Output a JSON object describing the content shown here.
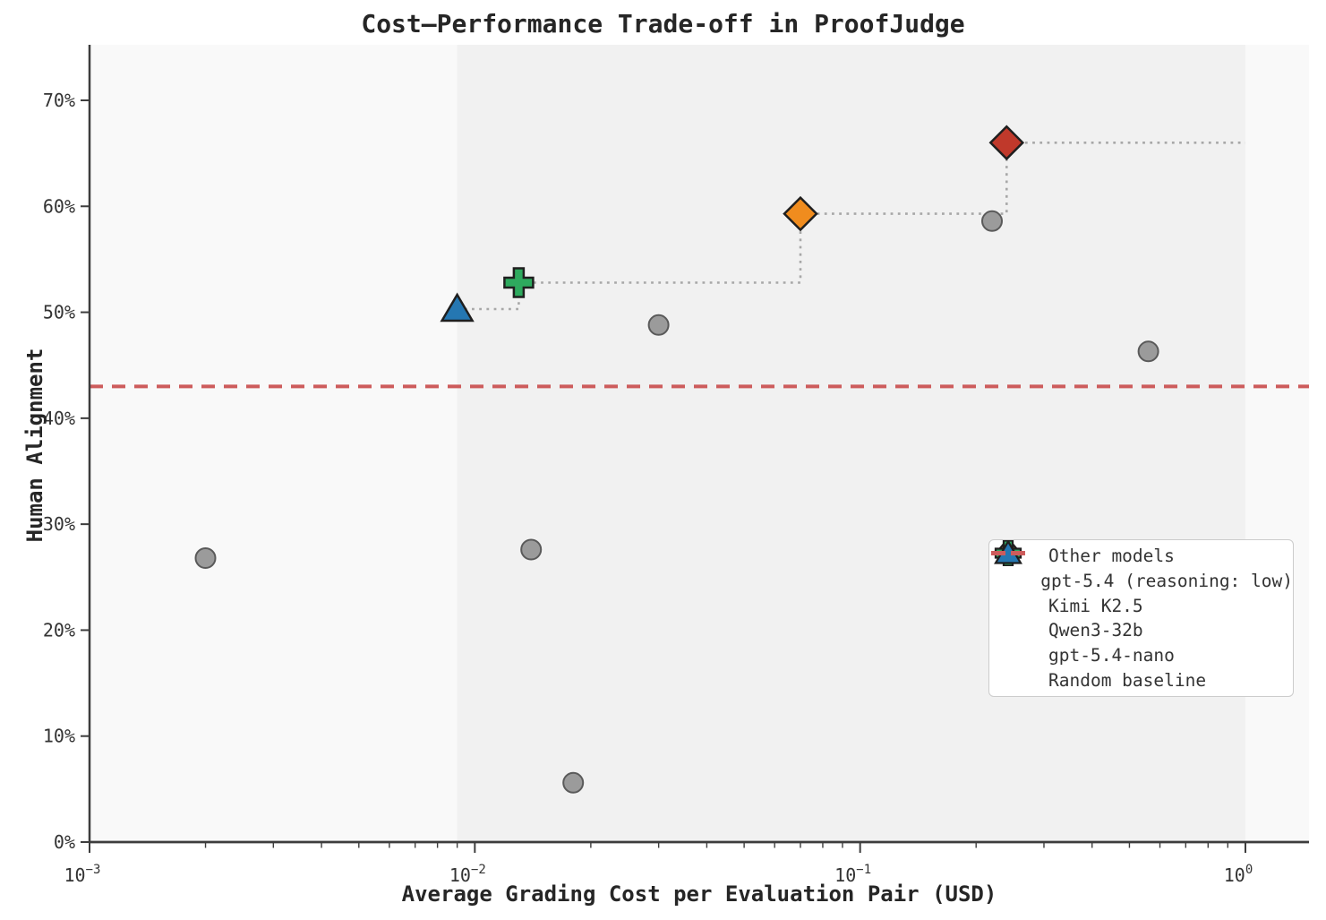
{
  "chart_data": {
    "type": "scatter",
    "title": "Cost—Performance Trade-off in ProofJudge",
    "xlabel": "Average Grading Cost per Evaluation Pair (USD)",
    "ylabel": "Human Alignment",
    "x_scale": "log",
    "xlim": [
      0.001,
      1.45
    ],
    "ylim": [
      0,
      75.2
    ],
    "grid": "off",
    "legend_position": "lower right",
    "x_ticks": [
      {
        "value": 0.001,
        "base": "10",
        "exp": "−3"
      },
      {
        "value": 0.01,
        "base": "10",
        "exp": "−2"
      },
      {
        "value": 0.1,
        "base": "10",
        "exp": "−1"
      },
      {
        "value": 1.0,
        "base": "10",
        "exp": "0"
      }
    ],
    "y_ticks": [
      {
        "value": 0,
        "label": "0%"
      },
      {
        "value": 10,
        "label": "10%"
      },
      {
        "value": 20,
        "label": "20%"
      },
      {
        "value": 30,
        "label": "30%"
      },
      {
        "value": 40,
        "label": "40%"
      },
      {
        "value": 50,
        "label": "50%"
      },
      {
        "value": 60,
        "label": "60%"
      },
      {
        "value": 70,
        "label": "70%"
      }
    ],
    "series": [
      {
        "name": "Other models",
        "marker": "circle",
        "color": "#9b9b9b",
        "edge_color": "#5a5a5a",
        "points": [
          [
            0.002,
            26.8
          ],
          [
            0.014,
            27.6
          ],
          [
            0.018,
            5.6
          ],
          [
            0.03,
            48.8
          ],
          [
            0.22,
            58.6
          ],
          [
            0.56,
            46.3
          ]
        ]
      },
      {
        "name": "gpt-5.4-nano",
        "marker": "triangle",
        "color": "#2577b2",
        "edge_color": "#1f1f1f",
        "points": [
          [
            0.009,
            50.3
          ]
        ]
      },
      {
        "name": "Qwen3-32b",
        "marker": "plus",
        "color": "#2eaa5e",
        "edge_color": "#1f1f1f",
        "points": [
          [
            0.013,
            52.8
          ]
        ]
      },
      {
        "name": "Kimi K2.5",
        "marker": "diamond",
        "color": "#f08c1e",
        "edge_color": "#1f1f1f",
        "points": [
          [
            0.07,
            59.3
          ]
        ]
      },
      {
        "name": "gpt-5.4 (reasoning: low)",
        "marker": "diamond",
        "color": "#c0392b",
        "edge_color": "#1f1f1f",
        "points": [
          [
            0.24,
            66.0
          ]
        ]
      }
    ],
    "baseline": {
      "label": "Random baseline",
      "value": 43,
      "color": "#cd5c5c",
      "style": "dashed"
    },
    "pareto_frontier": {
      "style": "dotted",
      "color": "#a8a8a8",
      "points": [
        [
          0.009,
          50.3
        ],
        [
          0.013,
          50.3
        ],
        [
          0.013,
          52.8
        ],
        [
          0.07,
          52.8
        ],
        [
          0.07,
          59.3
        ],
        [
          0.24,
          59.3
        ],
        [
          0.24,
          66.0
        ],
        [
          1.0,
          66.0
        ]
      ]
    },
    "shaded_region": {
      "x_start": 0.009,
      "x_end": 1.0,
      "color": "#f1f1f1"
    },
    "plot_background": "#f9f9f9"
  },
  "legend": {
    "items": [
      {
        "label": "Other models",
        "marker": "circle",
        "color": "#9b9b9b",
        "edge_color": "#5a5a5a"
      },
      {
        "label": "gpt-5.4 (reasoning: low)",
        "marker": "diamond",
        "color": "#c0392b",
        "edge_color": "#1f1f1f"
      },
      {
        "label": "Kimi K2.5",
        "marker": "diamond",
        "color": "#f08c1e",
        "edge_color": "#1f1f1f"
      },
      {
        "label": "Qwen3-32b",
        "marker": "plus",
        "color": "#2eaa5e",
        "edge_color": "#1f1f1f"
      },
      {
        "label": "gpt-5.4-nano",
        "marker": "triangle",
        "color": "#2577b2",
        "edge_color": "#1f1f1f"
      },
      {
        "label": "Random baseline",
        "marker": "dashes",
        "color": "#cd5c5c"
      }
    ]
  },
  "colors": {
    "figure_background": "#ffffff",
    "spine": "#3d3d3d",
    "tick_label": "#333333",
    "title": "#262626"
  }
}
